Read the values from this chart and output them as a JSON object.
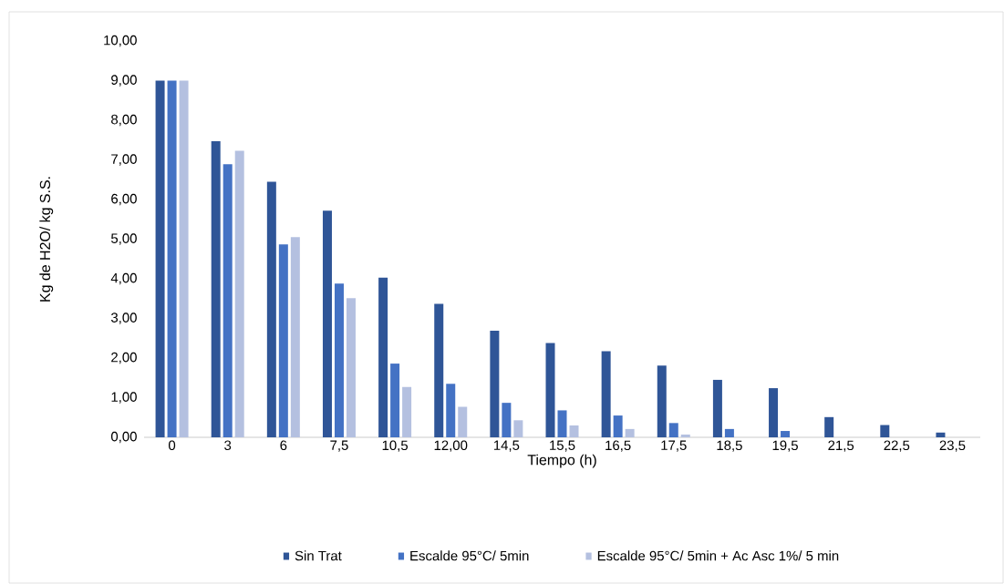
{
  "chart_data": {
    "type": "bar",
    "xlabel": "Tiempo (h)",
    "ylabel": "Kg de H2O/ kg S.S.",
    "categories": [
      "0",
      "3",
      "6",
      "7,5",
      "10,5",
      "12,00",
      "14,5",
      "15,5",
      "16,5",
      "17,5",
      "18,5",
      "19,5",
      "21,5",
      "22,5",
      "23,5"
    ],
    "series": [
      {
        "name": "Sin Trat",
        "color": "#2f5597",
        "values": [
          9.0,
          7.47,
          6.45,
          5.72,
          4.03,
          3.37,
          2.69,
          2.38,
          2.17,
          1.81,
          1.45,
          1.24,
          0.51,
          0.31,
          0.12
        ]
      },
      {
        "name": "Escalde 95°C/ 5min",
        "color": "#4472c4",
        "values": [
          9.0,
          6.89,
          4.87,
          3.88,
          1.86,
          1.35,
          0.87,
          0.68,
          0.55,
          0.36,
          0.21,
          0.16,
          0,
          0,
          0
        ]
      },
      {
        "name": "Escalde 95°C/ 5min + Ac Asc 1%/ 5 min",
        "color": "#b4c0e0",
        "values": [
          9.0,
          7.23,
          5.05,
          3.51,
          1.27,
          0.77,
          0.43,
          0.3,
          0.21,
          0.07,
          0,
          0,
          0,
          0,
          0
        ]
      }
    ],
    "ylim": [
      0,
      10
    ],
    "yticks": [
      {
        "value": 0,
        "label": "0,00"
      },
      {
        "value": 1,
        "label": "1,00"
      },
      {
        "value": 2,
        "label": "2,00"
      },
      {
        "value": 3,
        "label": "3,00"
      },
      {
        "value": 4,
        "label": "4,00"
      },
      {
        "value": 5,
        "label": "5,00"
      },
      {
        "value": 6,
        "label": "6,00"
      },
      {
        "value": 7,
        "label": "7,00"
      },
      {
        "value": 8,
        "label": "8,00"
      },
      {
        "value": 9,
        "label": "9,00"
      },
      {
        "value": 10,
        "label": "10,00"
      }
    ],
    "grid": false,
    "legend": "bottom"
  }
}
